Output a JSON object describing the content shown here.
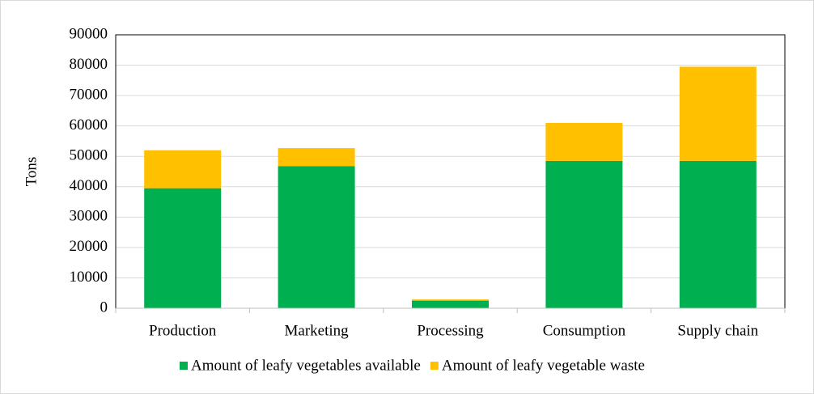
{
  "chart_data": {
    "type": "bar",
    "stacked": true,
    "y_label": "Tons",
    "categories": [
      "Production",
      "Marketing",
      "Processing",
      "Consumption",
      "Supply chain"
    ],
    "series": [
      {
        "name": "Amount of leafy vegetables available",
        "color": "#00b050",
        "values": [
          39500,
          46800,
          2500,
          48500,
          48500
        ]
      },
      {
        "name": "Amount of leafy vegetable waste",
        "color": "#ffc000",
        "values": [
          12500,
          5900,
          400,
          12500,
          31000
        ]
      }
    ],
    "ylim": [
      0,
      90000
    ],
    "yticks": [
      0,
      10000,
      20000,
      30000,
      40000,
      50000,
      60000,
      70000,
      80000,
      90000
    ],
    "grid": true,
    "legend": "bottom"
  }
}
